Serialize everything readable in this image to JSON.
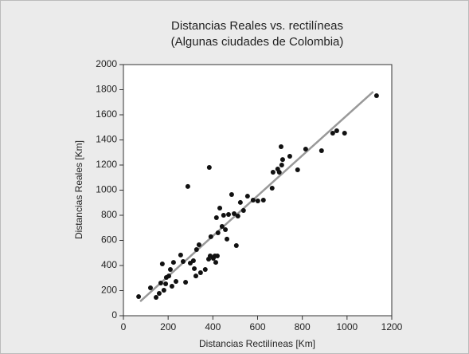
{
  "chart_data": {
    "type": "scatter",
    "title": [
      "Distancias Reales vs. rectilíneas",
      "(Algunas ciudades de Colombia)"
    ],
    "x_label": "Distancias Rectilíneas [Km]",
    "y_label": "Distancias Reales [Km]",
    "xlim": [
      0,
      1200
    ],
    "xticks": [
      0,
      200,
      400,
      600,
      800,
      1000,
      1200
    ],
    "ylim": [
      0,
      2000
    ],
    "yticks": [
      0,
      200,
      400,
      600,
      800,
      1000,
      1200,
      1400,
      1600,
      1800,
      2000
    ],
    "grid": false,
    "color": "#111111",
    "x": [
      68,
      121,
      146,
      160,
      167,
      174,
      181,
      189,
      192,
      203,
      210,
      217,
      224,
      235,
      256,
      267,
      278,
      288,
      299,
      313,
      317,
      324,
      327,
      338,
      345,
      366,
      381,
      384,
      388,
      391,
      402,
      409,
      413,
      416,
      420,
      423,
      431,
      441,
      448,
      456,
      463,
      470,
      484,
      495,
      505,
      512,
      523,
      537,
      555,
      580,
      601,
      626,
      665,
      669,
      690,
      697,
      705,
      708,
      712,
      744,
      779,
      815,
      886,
      936,
      954,
      989,
      1132
    ],
    "values": [
      152,
      222,
      146,
      178,
      260,
      413,
      203,
      254,
      305,
      317,
      368,
      235,
      425,
      273,
      483,
      432,
      267,
      1029,
      419,
      438,
      375,
      317,
      527,
      565,
      343,
      368,
      451,
      1181,
      476,
      629,
      457,
      476,
      425,
      781,
      476,
      660,
      857,
      711,
      800,
      686,
      610,
      806,
      965,
      813,
      559,
      794,
      902,
      838,
      952,
      921,
      914,
      921,
      1016,
      1143,
      1168,
      1143,
      1346,
      1200,
      1244,
      1270,
      1162,
      1327,
      1314,
      1454,
      1473,
      1454,
      1752
    ],
    "trendline": {
      "x": [
        75,
        1117
      ],
      "values": [
        114,
        1784
      ],
      "color": "#999999"
    }
  }
}
